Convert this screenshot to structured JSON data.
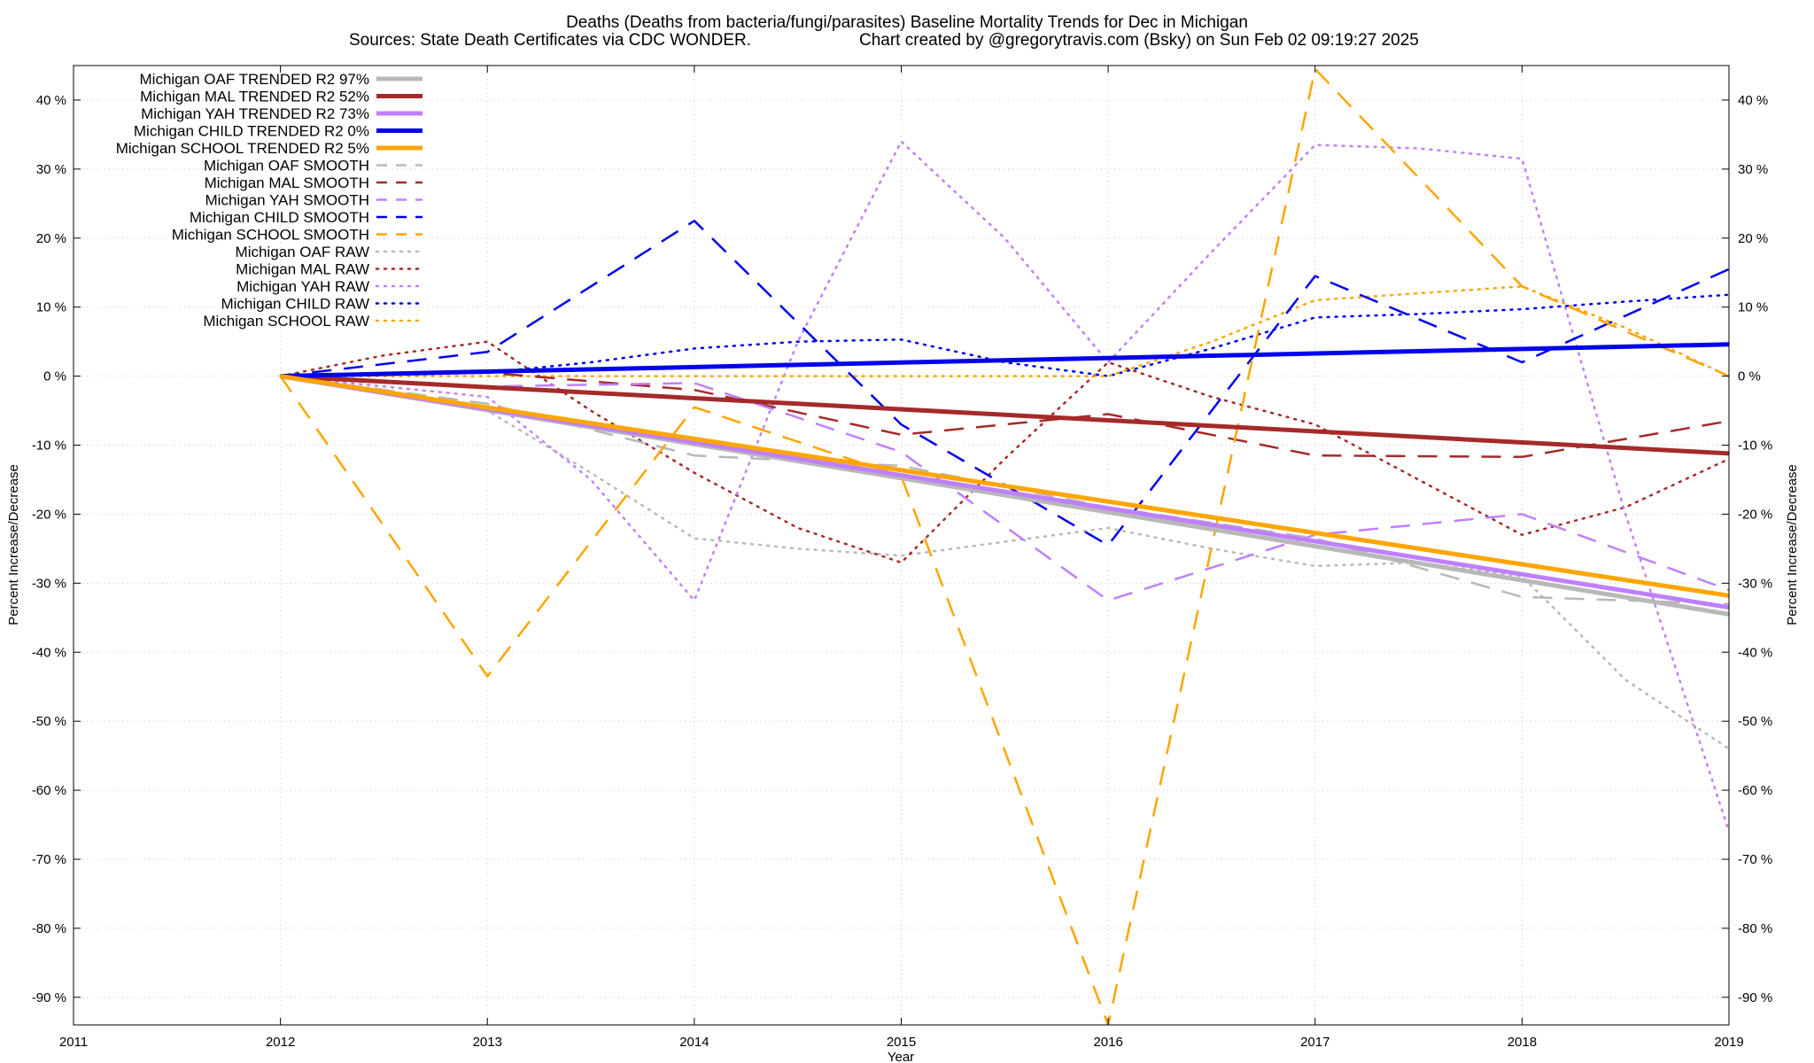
{
  "chart_data": {
    "type": "line",
    "title_line1": "Deaths (Deaths from bacteria/fungi/parasites)  Baseline Mortality Trends for Dec in Michigan",
    "title_line2_left": "Sources: State Death Certificates via CDC WONDER.",
    "title_line2_right": "Chart created by @gregorytravis.com (Bsky) on Sun Feb 02 09:19:27 2025",
    "xlabel": "Year",
    "ylabel_left": "Percent Increase/Decrease",
    "ylabel_right": "Percent Increase/Decrease",
    "xlim": [
      2011,
      2019
    ],
    "ylim": [
      -94,
      45
    ],
    "x_ticks": [
      2011,
      2012,
      2013,
      2014,
      2015,
      2016,
      2017,
      2018,
      2019
    ],
    "x_tick_labels": [
      "2011",
      "2012",
      "2013",
      "2014",
      "2015",
      "2016",
      "2017",
      "2018",
      "2019"
    ],
    "y_ticks": [
      40,
      30,
      20,
      10,
      0,
      -10,
      -20,
      -30,
      -40,
      -50,
      -60,
      -70,
      -80,
      -90
    ],
    "y_tick_labels": [
      "40 %",
      "30 %",
      "20 %",
      "10 %",
      "0 %",
      "-10 %",
      "-20 %",
      "-30 %",
      "-40 %",
      "-50 %",
      "-60 %",
      "-70 %",
      "-80 %",
      "-90 %"
    ],
    "grid": true,
    "legend_position": "top-left",
    "colors": {
      "oaf": "#b8b8b8",
      "mal": "#a52a2a",
      "yah": "#bf80ff",
      "child": "#0000ee",
      "school": "#ffa500"
    },
    "series": [
      {
        "name": "Michigan OAF TRENDED R2  97%",
        "group": "oaf",
        "style": "trend",
        "x": [
          2012,
          2019
        ],
        "values": [
          0,
          -34.5
        ]
      },
      {
        "name": "Michigan MAL TRENDED R2  52%",
        "group": "mal",
        "style": "trend",
        "x": [
          2012,
          2019
        ],
        "values": [
          0,
          -11.2
        ]
      },
      {
        "name": "Michigan YAH TRENDED R2  73%",
        "group": "yah",
        "style": "trend",
        "x": [
          2012,
          2019
        ],
        "values": [
          0,
          -33.5
        ]
      },
      {
        "name": "Michigan CHILD TRENDED R2   0%",
        "group": "child",
        "style": "trend",
        "x": [
          2012,
          2019
        ],
        "values": [
          0,
          4.6
        ]
      },
      {
        "name": "Michigan SCHOOL TRENDED R2   5%",
        "group": "school",
        "style": "trend",
        "x": [
          2012,
          2019
        ],
        "values": [
          0,
          -31.8
        ]
      },
      {
        "name": "Michigan OAF SMOOTH",
        "group": "oaf",
        "style": "smooth",
        "x": [
          2012,
          2013,
          2014,
          2015,
          2016,
          2017,
          2018,
          2019
        ],
        "values": [
          0,
          -4,
          -11.5,
          -13,
          -19,
          -23.5,
          -32,
          -33
        ]
      },
      {
        "name": "Michigan MAL SMOOTH",
        "group": "mal",
        "style": "smooth",
        "x": [
          2012,
          2013,
          2014,
          2015,
          2016,
          2017,
          2018,
          2019
        ],
        "values": [
          0,
          0.5,
          -2,
          -8.5,
          -5.5,
          -11.5,
          -11.7,
          -6.5
        ]
      },
      {
        "name": "Michigan YAH SMOOTH",
        "group": "yah",
        "style": "smooth",
        "x": [
          2012,
          2013,
          2014,
          2015,
          2016,
          2017,
          2018,
          2019
        ],
        "values": [
          0,
          -1.5,
          -1,
          -11,
          -32.5,
          -23,
          -20,
          -31
        ]
      },
      {
        "name": "Michigan CHILD SMOOTH",
        "group": "child",
        "style": "smooth",
        "x": [
          2012,
          2013,
          2014,
          2015,
          2016,
          2017,
          2018,
          2019
        ],
        "values": [
          0,
          3.5,
          22.5,
          -7,
          -24.5,
          14.5,
          2,
          15.5
        ]
      },
      {
        "name": "Michigan SCHOOL SMOOTH",
        "group": "school",
        "style": "smooth",
        "x": [
          2012,
          2013,
          2014,
          2015,
          2016,
          2017,
          2018,
          2019
        ],
        "values": [
          0,
          -43.5,
          -4.5,
          -14.5,
          -94,
          44.5,
          13,
          0
        ]
      },
      {
        "name": "Michigan OAF RAW",
        "group": "oaf",
        "style": "raw",
        "x": [
          2012,
          2012.5,
          2013,
          2013.5,
          2014,
          2014.5,
          2015,
          2015.5,
          2016,
          2016.5,
          2017,
          2017.5,
          2018,
          2018.5,
          2019
        ],
        "values": [
          0,
          -2,
          -5,
          -14,
          -23.5,
          -25,
          -26,
          -24,
          -22,
          -25,
          -27.5,
          -27,
          -29,
          -44,
          -54
        ]
      },
      {
        "name": "Michigan MAL RAW",
        "group": "mal",
        "style": "raw",
        "x": [
          2012,
          2012.5,
          2013,
          2013.5,
          2014,
          2014.5,
          2015,
          2015.5,
          2016,
          2016.5,
          2017,
          2017.5,
          2018,
          2018.5,
          2019
        ],
        "values": [
          0,
          3,
          5,
          -5,
          -14,
          -22,
          -27,
          -12,
          2,
          -3,
          -7,
          -15,
          -23,
          -19,
          -12
        ]
      },
      {
        "name": "Michigan YAH RAW",
        "group": "yah",
        "style": "raw",
        "x": [
          2012,
          2012.5,
          2013,
          2013.5,
          2014,
          2014.5,
          2015,
          2015.5,
          2016,
          2016.5,
          2017,
          2017.5,
          2018,
          2018.5,
          2019
        ],
        "values": [
          0,
          -1.5,
          -3,
          -15,
          -32.5,
          5,
          34,
          20,
          2,
          18,
          33.5,
          33,
          31.5,
          -20,
          -66
        ]
      },
      {
        "name": "Michigan CHILD RAW",
        "group": "child",
        "style": "raw",
        "x": [
          2012,
          2012.5,
          2013,
          2013.5,
          2014,
          2014.5,
          2015,
          2015.5,
          2016,
          2016.5,
          2017,
          2017.5,
          2018,
          2018.5,
          2019
        ],
        "values": [
          0,
          0.2,
          0.5,
          2,
          4,
          5,
          5.3,
          2,
          0,
          4,
          8.5,
          9,
          9.7,
          10.8,
          11.8
        ]
      },
      {
        "name": "Michigan SCHOOL RAW",
        "group": "school",
        "style": "raw",
        "x": [
          2012,
          2012.5,
          2013,
          2013.5,
          2014,
          2014.5,
          2015,
          2015.5,
          2016,
          2016.5,
          2017,
          2017.5,
          2018,
          2018.5,
          2019
        ],
        "values": [
          0,
          0,
          0,
          0,
          0,
          0,
          0,
          0,
          0,
          5,
          11,
          12,
          13,
          7,
          0
        ]
      }
    ]
  }
}
